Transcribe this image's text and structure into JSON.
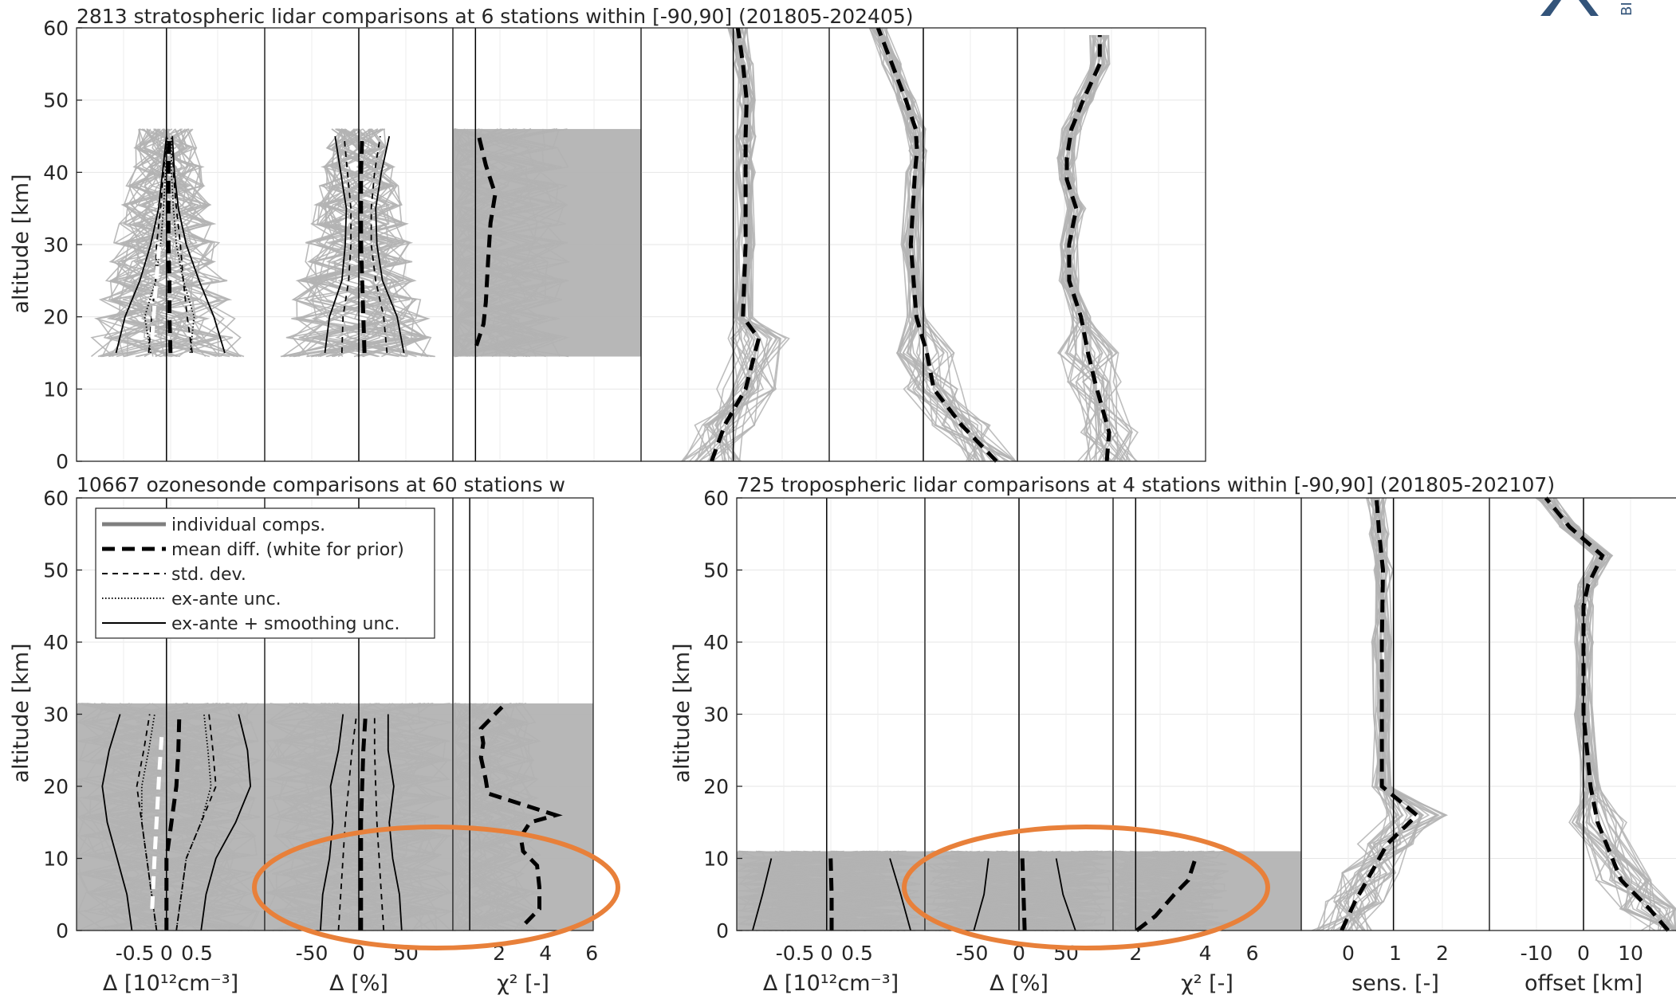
{
  "figure": {
    "logo_text": "BI",
    "colors": {
      "individual": "#b3b3b3",
      "axis": "#262626",
      "highlight_ellipse": "#e8803a",
      "logo": "#33547a"
    },
    "shared_ylabel": "altitude [km]",
    "shared_yticks": [
      "0",
      "10",
      "20",
      "30",
      "40",
      "50",
      "60"
    ],
    "ylim": [
      0,
      60
    ]
  },
  "legend": {
    "placement": "top-left of ozonesonde group",
    "entries": [
      "individual comps.",
      "mean diff. (white for prior)",
      "std. dev.",
      "ex-ante unc.",
      "ex-ante + smoothing unc."
    ]
  },
  "groups": {
    "strat": {
      "title": "2813 stratospheric lidar comparisons at 6 stations within [-90,90] (201805-202405)",
      "columns": [
        "abs",
        "rel",
        "chi",
        "sens",
        "offset",
        "res"
      ]
    },
    "sonde": {
      "title": "10667 ozonesonde comparisons at 60 stations w",
      "columns": [
        "abs",
        "rel",
        "chi"
      ],
      "xlabels": {
        "abs": "Δ [10¹²cm⁻³]",
        "rel": "Δ [%]",
        "chi": "χ² [-]"
      },
      "xticks": {
        "abs": [
          "-0.5",
          "0",
          "0.5"
        ],
        "rel": [
          "-50",
          "0",
          "50"
        ],
        "chi": [
          "2",
          "4",
          "6"
        ]
      }
    },
    "trop": {
      "title": "725 tropospheric lidar comparisons at 4 stations within [-90,90] (201805-202107)",
      "columns": [
        "abs",
        "rel",
        "chi",
        "sens",
        "offset"
      ],
      "xlabels": {
        "abs": "Δ [10¹²cm⁻³]",
        "rel": "Δ [%]",
        "chi": "χ² [-]",
        "sens": "sens. [-]",
        "offset": "offset [km]"
      },
      "xticks": {
        "abs": [
          "-0.5",
          "0",
          "0.5"
        ],
        "rel": [
          "-50",
          "0",
          "50"
        ],
        "chi": [
          "2",
          "4",
          "6"
        ],
        "sens": [
          "0",
          "1",
          "2"
        ],
        "offset": [
          "-10",
          "0",
          "10"
        ]
      }
    }
  },
  "chart_data": [
    {
      "type": "line",
      "panel": "stratospheric lidar: absolute difference",
      "ylim": [
        0,
        60
      ],
      "xlim": [
        -1,
        1
      ],
      "band": {
        "altitude": [
          14.5,
          46
        ]
      },
      "series": [
        {
          "name": "mean diff. (white for prior)",
          "x": [
            0.04,
            0.03,
            0.03,
            0.02,
            0.02,
            0.02,
            0.03
          ],
          "y": [
            15,
            20,
            25,
            30,
            35,
            40,
            45
          ]
        },
        {
          "name": "std. dev.",
          "x": [
            -0.22,
            -0.18,
            -0.14,
            -0.12,
            -0.08,
            -0.05,
            -0.03
          ],
          "y": [
            15,
            20,
            25,
            30,
            35,
            40,
            45
          ]
        },
        {
          "name": "ex-ante unc.",
          "x": [
            -0.2,
            -0.25,
            -0.14,
            -0.08,
            -0.05,
            -0.03,
            -0.02
          ],
          "y": [
            15,
            20,
            25,
            30,
            35,
            40,
            45
          ]
        },
        {
          "name": "ex-ante + smoothing unc.",
          "x": [
            -0.55,
            -0.45,
            -0.3,
            -0.18,
            -0.1,
            -0.06,
            -0.03
          ],
          "y": [
            15,
            20,
            25,
            30,
            35,
            40,
            45
          ]
        }
      ]
    },
    {
      "type": "line",
      "panel": "stratospheric lidar: relative difference",
      "ylim": [
        0,
        60
      ],
      "xlim": [
        -100,
        100
      ],
      "band": {
        "altitude": [
          14.5,
          46
        ]
      },
      "series": [
        {
          "name": "mean diff. (white for prior)",
          "x": [
            5,
            4,
            3,
            2,
            2,
            2,
            3
          ],
          "y": [
            15,
            20,
            25,
            30,
            35,
            40,
            45
          ]
        },
        {
          "name": "std. dev.",
          "x": [
            -20,
            -18,
            -12,
            -9,
            -9,
            -12,
            -16
          ],
          "y": [
            15,
            20,
            25,
            30,
            35,
            40,
            45
          ]
        },
        {
          "name": "ex-ante + smoothing unc.",
          "x": [
            -35,
            -30,
            -18,
            -14,
            -13,
            -18,
            -24
          ],
          "y": [
            15,
            20,
            25,
            30,
            35,
            40,
            45
          ]
        }
      ]
    },
    {
      "type": "line",
      "panel": "stratospheric lidar: chi-square",
      "ylim": [
        0,
        60
      ],
      "band": {
        "altitude": [
          14.5,
          46
        ]
      },
      "series": [
        {
          "name": "mean diff. (white for prior)",
          "x": [
            1.0,
            1.3,
            1.4,
            1.5,
            1.6,
            1.8,
            1.4,
            1.1
          ],
          "y": [
            16,
            19,
            22,
            28,
            33,
            37,
            41,
            45
          ]
        }
      ]
    },
    {
      "type": "line",
      "panel": "stratospheric lidar: sensitivity",
      "ylim": [
        0,
        60
      ],
      "series": [
        {
          "name": "mean diff. (white for prior)",
          "x": [
            0.35,
            0.6,
            1.0,
            1.25,
            0.95,
            1.0,
            1.0,
            1.0,
            1.02,
            0.95,
            0.85
          ],
          "y": [
            0,
            5,
            10,
            17,
            20,
            30,
            40,
            45,
            50,
            55,
            60
          ]
        }
      ]
    },
    {
      "type": "line",
      "panel": "stratospheric lidar: offset",
      "ylim": [
        0,
        60
      ],
      "series": [
        {
          "name": "mean diff. (white for prior)",
          "x": [
            12,
            7,
            3,
            2,
            0.5,
            -0.3,
            0.3,
            0.6,
            0.4,
            -1,
            -3,
            -5
          ],
          "y": [
            0,
            5,
            10,
            15,
            20,
            30,
            40,
            43,
            46,
            50,
            55,
            60
          ]
        }
      ]
    },
    {
      "type": "line",
      "panel": "stratospheric lidar: resolution",
      "ylim": [
        0,
        60
      ],
      "series": [
        {
          "name": "mean diff. (white for prior)",
          "x": [
            3.8,
            3.9,
            3.3,
            3.0,
            2.7,
            2.2,
            2.2,
            2.5,
            2.1,
            2.1,
            2.3,
            2.8,
            3.5,
            3.5
          ],
          "y": [
            0,
            4,
            11,
            15,
            20,
            25,
            30,
            35,
            39,
            42,
            46,
            50,
            55,
            59
          ]
        }
      ]
    },
    {
      "type": "line",
      "panel": "ozonesonde: absolute difference",
      "ylim": [
        0,
        60
      ],
      "xlim": [
        -1,
        1
      ],
      "band": {
        "altitude": [
          0,
          31.5
        ]
      },
      "series": [
        {
          "name": "mean diff. (white for prior)",
          "x": [
            0.0,
            0.0,
            0.0,
            0.05,
            0.1,
            0.12,
            0.13
          ],
          "y": [
            0,
            5,
            10,
            15,
            20,
            25,
            30
          ]
        },
        {
          "name": "std. dev.",
          "x": [
            -0.1,
            -0.15,
            -0.2,
            -0.3,
            -0.4,
            -0.35,
            -0.3
          ],
          "y": [
            0,
            5,
            10,
            15,
            20,
            25,
            30
          ]
        },
        {
          "name": "ex-ante unc.",
          "x": [
            -0.1,
            -0.15,
            -0.2,
            -0.3,
            -0.35,
            -0.3,
            -0.25
          ],
          "y": [
            0,
            5,
            10,
            15,
            20,
            25,
            30
          ]
        },
        {
          "name": "ex-ante + smoothing unc.",
          "x": [
            -0.35,
            -0.4,
            -0.5,
            -0.65,
            -0.75,
            -0.7,
            -0.6
          ],
          "y": [
            0,
            5,
            10,
            15,
            20,
            25,
            30
          ]
        }
      ]
    },
    {
      "type": "line",
      "panel": "ozonesonde: relative difference",
      "ylim": [
        0,
        60
      ],
      "xlim": [
        -100,
        100
      ],
      "band": {
        "altitude": [
          0,
          31.5
        ]
      },
      "series": [
        {
          "name": "mean diff. (white for prior)",
          "x": [
            2,
            2,
            2,
            2,
            3,
            4,
            6
          ],
          "y": [
            0,
            5,
            10,
            15,
            20,
            25,
            30
          ]
        },
        {
          "name": "std. dev.",
          "x": [
            -20,
            -18,
            -16,
            -14,
            -12,
            -10,
            -8
          ],
          "y": [
            0,
            5,
            10,
            15,
            20,
            25,
            30
          ]
        },
        {
          "name": "ex-ante + smoothing unc.",
          "x": [
            -36,
            -34,
            -28,
            -25,
            -28,
            -22,
            -20
          ],
          "y": [
            0,
            5,
            10,
            15,
            20,
            25,
            30
          ]
        }
      ]
    },
    {
      "type": "line",
      "panel": "ozonesonde: chi-square",
      "ylim": [
        0,
        60
      ],
      "xlim": [
        0,
        6
      ],
      "band": {
        "altitude": [
          0,
          31.5
        ]
      },
      "series": [
        {
          "name": "mean diff. (white for prior)",
          "x": [
            3.1,
            3.7,
            3.7,
            3.6,
            3.0,
            2.9,
            3.3,
            4.4,
            1.5,
            1.4,
            1.2,
            1.3,
            1.2,
            2.1
          ],
          "y": [
            1,
            3,
            6,
            9,
            11,
            13,
            15,
            16,
            19,
            21,
            24,
            26,
            28,
            31
          ]
        }
      ]
    },
    {
      "type": "line",
      "panel": "tropospheric lidar: absolute difference",
      "ylim": [
        0,
        60
      ],
      "xlim": [
        -1,
        1
      ],
      "band": {
        "altitude": [
          0,
          11
        ]
      },
      "series": [
        {
          "name": "mean diff. (white for prior)",
          "x": [
            0.05,
            0.05,
            0.04
          ],
          "y": [
            0,
            5,
            10
          ]
        },
        {
          "name": "ex-ante + smoothing unc.",
          "x": [
            -0.8,
            -0.7,
            -0.6
          ],
          "y": [
            0,
            5,
            10
          ]
        }
      ]
    },
    {
      "type": "line",
      "panel": "tropospheric lidar: relative difference",
      "ylim": [
        0,
        60
      ],
      "xlim": [
        -100,
        100
      ],
      "band": {
        "altitude": [
          0,
          11
        ]
      },
      "series": [
        {
          "name": "mean diff. (white for prior)",
          "x": [
            5,
            4,
            3
          ],
          "y": [
            0,
            5,
            10
          ]
        },
        {
          "name": "ex-ante + smoothing unc.",
          "x": [
            -45,
            -35,
            -30
          ],
          "y": [
            0,
            5,
            10
          ]
        }
      ]
    },
    {
      "type": "line",
      "panel": "tropospheric lidar: chi-square",
      "ylim": [
        0,
        60
      ],
      "xlim": [
        0,
        8
      ],
      "band": {
        "altitude": [
          0,
          11
        ]
      },
      "series": [
        {
          "name": "mean diff. (white for prior)",
          "x": [
            1.0,
            1.8,
            2.6,
            3.2,
            3.5
          ],
          "y": [
            0,
            2,
            5,
            7,
            10
          ]
        }
      ]
    },
    {
      "type": "line",
      "panel": "tropospheric lidar: sensitivity",
      "ylim": [
        0,
        60
      ],
      "xlim": [
        -0.5,
        3
      ],
      "series": [
        {
          "name": "mean diff. (white for prior)",
          "x": [
            0.25,
            0.5,
            0.8,
            1.1,
            1.65,
            1.0,
            1.0,
            1.0,
            1.02,
            0.95,
            0.9
          ],
          "y": [
            0,
            4,
            8,
            12,
            16,
            20,
            30,
            40,
            50,
            55,
            60
          ]
        }
      ]
    },
    {
      "type": "line",
      "panel": "tropospheric lidar: offset",
      "ylim": [
        0,
        60
      ],
      "xlim": [
        -20,
        20
      ],
      "series": [
        {
          "name": "mean diff. (white for prior)",
          "x": [
            18,
            14,
            8,
            3,
            1.5,
            0,
            0,
            0,
            1,
            4,
            -3,
            -8
          ],
          "y": [
            0,
            3,
            7,
            15,
            20,
            30,
            40,
            45,
            48,
            52,
            56,
            60
          ]
        }
      ]
    }
  ]
}
